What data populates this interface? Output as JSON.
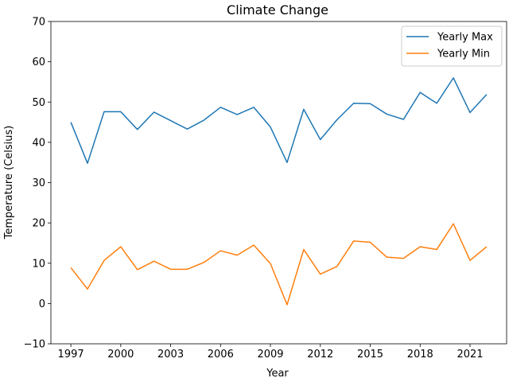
{
  "chart_data": {
    "type": "line",
    "title": "Climate Change",
    "xlabel": "Year",
    "ylabel": "Temperature (Celsius)",
    "xlim": [
      1995.8,
      2023.2
    ],
    "ylim": [
      -10,
      70
    ],
    "xticks": [
      1997,
      2000,
      2003,
      2006,
      2009,
      2012,
      2015,
      2018,
      2021
    ],
    "yticks": [
      -10,
      0,
      10,
      20,
      30,
      40,
      50,
      60,
      70
    ],
    "grid": false,
    "legend_position": "upper right",
    "x": [
      1997,
      1998,
      1999,
      2000,
      2001,
      2002,
      2003,
      2004,
      2005,
      2006,
      2007,
      2008,
      2009,
      2010,
      2011,
      2012,
      2013,
      2014,
      2015,
      2016,
      2017,
      2018,
      2019,
      2020,
      2021,
      2022
    ],
    "series": [
      {
        "name": "Yearly Max",
        "color": "#1f77b4",
        "values": [
          45.0,
          34.8,
          47.6,
          47.6,
          43.2,
          47.5,
          45.4,
          43.3,
          45.5,
          48.7,
          46.9,
          48.7,
          43.8,
          35.0,
          48.2,
          40.7,
          45.6,
          49.7,
          49.6,
          47.0,
          45.7,
          52.4,
          49.7,
          56.0,
          47.4,
          51.9
        ]
      },
      {
        "name": "Yearly Min",
        "color": "#ff7f0e",
        "values": [
          8.9,
          3.6,
          10.7,
          14.1,
          8.4,
          10.5,
          8.5,
          8.5,
          10.2,
          13.1,
          12.0,
          14.5,
          9.9,
          -0.3,
          13.4,
          7.3,
          9.2,
          15.5,
          15.2,
          11.5,
          11.2,
          14.1,
          13.4,
          19.8,
          10.7,
          14.1
        ]
      }
    ]
  }
}
